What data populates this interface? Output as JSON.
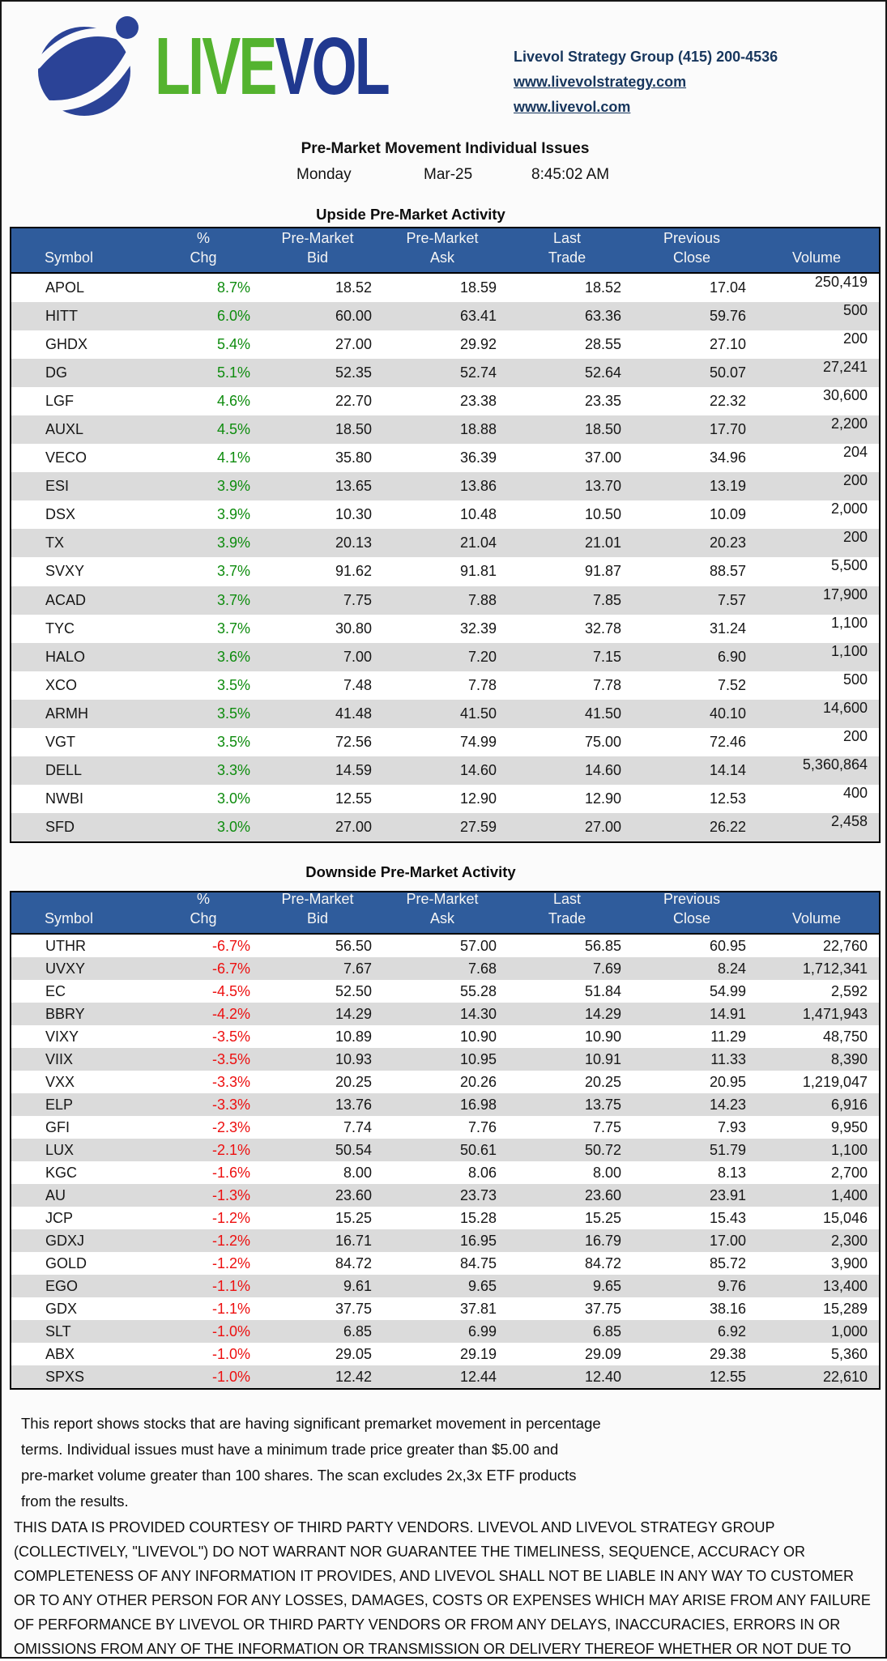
{
  "header": {
    "logo": {
      "icon": "globe-orbit-icon",
      "text_live": "LIVE",
      "text_vol": "VOL"
    },
    "contact": {
      "phone_line": "Livevol Strategy Group (415) 200-4536",
      "link_strategy": "www.livevolstrategy.com",
      "link_main": "www.livevol.com"
    },
    "report_title": "Pre-Market Movement Individual Issues",
    "day": "Monday",
    "date": "Mar-25",
    "time": "8:45:02 AM"
  },
  "table_columns": [
    {
      "top": "",
      "bottom": "Symbol"
    },
    {
      "top": "",
      "bottom": "% Chg"
    },
    {
      "top": "Pre-Market",
      "bottom": "Bid"
    },
    {
      "top": "Pre-Market",
      "bottom": "Ask"
    },
    {
      "top": "Last",
      "bottom": "Trade"
    },
    {
      "top": "Previous",
      "bottom": "Close"
    },
    {
      "top": "",
      "bottom": "Volume"
    }
  ],
  "upside": {
    "title": "Upside Pre-Market Activity",
    "rows": [
      [
        "APOL",
        "8.7%",
        "18.52",
        "18.59",
        "18.52",
        "17.04",
        "250,419"
      ],
      [
        "HITT",
        "6.0%",
        "60.00",
        "63.41",
        "63.36",
        "59.76",
        "500"
      ],
      [
        "GHDX",
        "5.4%",
        "27.00",
        "29.92",
        "28.55",
        "27.10",
        "200"
      ],
      [
        "DG",
        "5.1%",
        "52.35",
        "52.74",
        "52.64",
        "50.07",
        "27,241"
      ],
      [
        "LGF",
        "4.6%",
        "22.70",
        "23.38",
        "23.35",
        "22.32",
        "30,600"
      ],
      [
        "AUXL",
        "4.5%",
        "18.50",
        "18.88",
        "18.50",
        "17.70",
        "2,200"
      ],
      [
        "VECO",
        "4.1%",
        "35.80",
        "36.39",
        "37.00",
        "34.96",
        "204"
      ],
      [
        "ESI",
        "3.9%",
        "13.65",
        "13.86",
        "13.70",
        "13.19",
        "200"
      ],
      [
        "DSX",
        "3.9%",
        "10.30",
        "10.48",
        "10.50",
        "10.09",
        "2,000"
      ],
      [
        "TX",
        "3.9%",
        "20.13",
        "21.04",
        "21.01",
        "20.23",
        "200"
      ],
      [
        "SVXY",
        "3.7%",
        "91.62",
        "91.81",
        "91.87",
        "88.57",
        "5,500"
      ],
      [
        "ACAD",
        "3.7%",
        "7.75",
        "7.88",
        "7.85",
        "7.57",
        "17,900"
      ],
      [
        "TYC",
        "3.7%",
        "30.80",
        "32.39",
        "32.78",
        "31.24",
        "1,100"
      ],
      [
        "HALO",
        "3.6%",
        "7.00",
        "7.20",
        "7.15",
        "6.90",
        "1,100"
      ],
      [
        "XCO",
        "3.5%",
        "7.48",
        "7.78",
        "7.78",
        "7.52",
        "500"
      ],
      [
        "ARMH",
        "3.5%",
        "41.48",
        "41.50",
        "41.50",
        "40.10",
        "14,600"
      ],
      [
        "VGT",
        "3.5%",
        "72.56",
        "74.99",
        "75.00",
        "72.46",
        "200"
      ],
      [
        "DELL",
        "3.3%",
        "14.59",
        "14.60",
        "14.60",
        "14.14",
        "5,360,864"
      ],
      [
        "NWBI",
        "3.0%",
        "12.55",
        "12.90",
        "12.90",
        "12.53",
        "400"
      ],
      [
        "SFD",
        "3.0%",
        "27.00",
        "27.59",
        "27.00",
        "26.22",
        "2,458"
      ]
    ]
  },
  "downside": {
    "title": "Downside Pre-Market Activity",
    "rows": [
      [
        "UTHR",
        "-6.7%",
        "56.50",
        "57.00",
        "56.85",
        "60.95",
        "22,760"
      ],
      [
        "UVXY",
        "-6.7%",
        "7.67",
        "7.68",
        "7.69",
        "8.24",
        "1,712,341"
      ],
      [
        "EC",
        "-4.5%",
        "52.50",
        "55.28",
        "51.84",
        "54.99",
        "2,592"
      ],
      [
        "BBRY",
        "-4.2%",
        "14.29",
        "14.30",
        "14.29",
        "14.91",
        "1,471,943"
      ],
      [
        "VIXY",
        "-3.5%",
        "10.89",
        "10.90",
        "10.90",
        "11.29",
        "48,750"
      ],
      [
        "VIIX",
        "-3.5%",
        "10.93",
        "10.95",
        "10.91",
        "11.33",
        "8,390"
      ],
      [
        "VXX",
        "-3.3%",
        "20.25",
        "20.26",
        "20.25",
        "20.95",
        "1,219,047"
      ],
      [
        "ELP",
        "-3.3%",
        "13.76",
        "16.98",
        "13.75",
        "14.23",
        "6,916"
      ],
      [
        "GFI",
        "-2.3%",
        "7.74",
        "7.76",
        "7.75",
        "7.93",
        "9,950"
      ],
      [
        "LUX",
        "-2.1%",
        "50.54",
        "50.61",
        "50.72",
        "51.79",
        "1,100"
      ],
      [
        "KGC",
        "-1.6%",
        "8.00",
        "8.06",
        "8.00",
        "8.13",
        "2,700"
      ],
      [
        "AU",
        "-1.3%",
        "23.60",
        "23.73",
        "23.60",
        "23.91",
        "1,400"
      ],
      [
        "JCP",
        "-1.2%",
        "15.25",
        "15.28",
        "15.25",
        "15.43",
        "15,046"
      ],
      [
        "GDXJ",
        "-1.2%",
        "16.71",
        "16.95",
        "16.79",
        "17.00",
        "2,300"
      ],
      [
        "GOLD",
        "-1.2%",
        "84.72",
        "84.75",
        "84.72",
        "85.72",
        "3,900"
      ],
      [
        "EGO",
        "-1.1%",
        "9.61",
        "9.65",
        "9.65",
        "9.76",
        "13,400"
      ],
      [
        "GDX",
        "-1.1%",
        "37.75",
        "37.81",
        "37.75",
        "38.16",
        "15,289"
      ],
      [
        "SLT",
        "-1.0%",
        "6.85",
        "6.99",
        "6.85",
        "6.92",
        "1,000"
      ],
      [
        "ABX",
        "-1.0%",
        "29.05",
        "29.19",
        "29.09",
        "29.38",
        "5,360"
      ],
      [
        "SPXS",
        "-1.0%",
        "12.42",
        "12.44",
        "12.40",
        "12.55",
        "22,610"
      ]
    ]
  },
  "footer": {
    "description_lines": [
      "This report shows stocks that are having significant premarket movement in percentage",
      " terms.  Individual issues must have a minimum trade price greater than $5.00 and",
      "pre-market volume greater than 100 shares. The scan excludes 2x,3x ETF products",
      "from the results."
    ],
    "disclaimer_lines": [
      "THIS DATA IS PROVIDED COURTESY OF THIRD PARTY VENDORS. LIVEVOL AND LIVEVOL STRATEGY GROUP",
      "(COLLECTIVELY, \"LIVEVOL\") DO NOT WARRANT NOR GUARANTEE THE TIMELINESS, SEQUENCE, ACCURACY OR",
      "COMPLETENESS OF ANY INFORMATION IT PROVIDES, AND LIVEVOL SHALL NOT BE LIABLE IN ANY WAY TO CUSTOMER",
      "OR TO ANY OTHER PERSON FOR ANY LOSSES, DAMAGES, COSTS OR EXPENSES WHICH MAY ARISE FROM ANY FAILURE",
      "OF PERFORMANCE BY LIVEVOL OR THIRD PARTY VENDORS OR FROM ANY DELAYS, INACCURACIES, ERRORS IN OR",
      "OMISSIONS FROM ANY OF THE INFORMATION OR TRANSMISSION OR DELIVERY THEREOF WHETHER OR NOT DUE TO"
    ]
  },
  "colors": {
    "page_bg": "#FBFBFB",
    "header_bar": "#2F5C9C",
    "row_stripe": "#DBDBDB",
    "upside_pct": "#0E8C0E",
    "downside_pct": "#ED0F0F",
    "link_navy": "#17365D",
    "logo_green": "#54B32F",
    "logo_blue": "#20388F"
  }
}
